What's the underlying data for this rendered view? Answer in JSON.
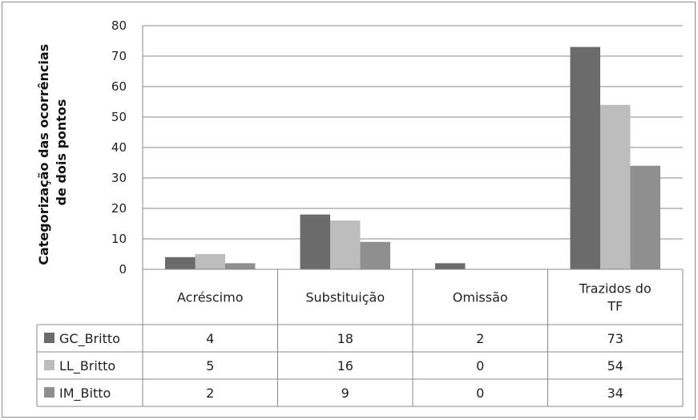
{
  "chart_data": {
    "type": "bar",
    "ylabel_lines": [
      "Categorização das ocorrências",
      "de dois pontos"
    ],
    "xlabel": "",
    "ylim": [
      0,
      80
    ],
    "yticks": [
      0,
      10,
      20,
      30,
      40,
      50,
      60,
      70,
      80
    ],
    "grid": true,
    "legend": "table-left",
    "categories": [
      {
        "lines": [
          "Acréscimo"
        ]
      },
      {
        "lines": [
          "Substituição"
        ]
      },
      {
        "lines": [
          "Omissão"
        ]
      },
      {
        "lines": [
          "Trazidos do",
          "TF"
        ]
      }
    ],
    "series": [
      {
        "name": "GC_Britto",
        "color": "#6b6b6b",
        "values": [
          4,
          18,
          2,
          73
        ]
      },
      {
        "name": "LL_Britto",
        "color": "#bdbdbd",
        "values": [
          5,
          16,
          0,
          54
        ]
      },
      {
        "name": "IM_Bitto",
        "color": "#8f8f8f",
        "values": [
          2,
          9,
          0,
          34
        ]
      }
    ]
  }
}
